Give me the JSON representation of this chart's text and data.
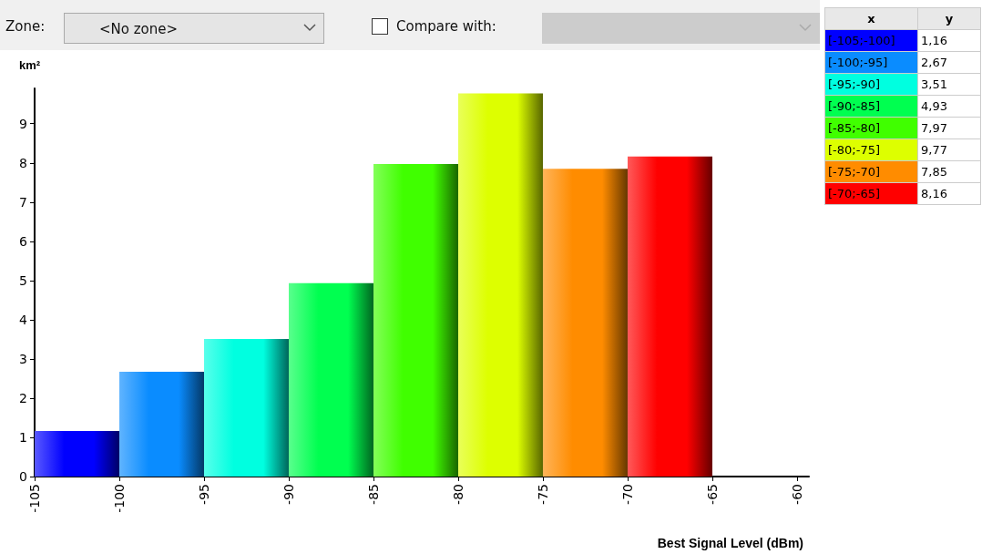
{
  "chart_data": {
    "type": "histogram",
    "xlabel": "Best Signal Level (dBm)",
    "ylabel": "km²",
    "bins": [
      -105,
      -100,
      -95,
      -90,
      -85,
      -80,
      -75,
      -70,
      -65
    ],
    "values": [
      1.16,
      2.67,
      3.51,
      4.93,
      7.97,
      9.77,
      7.85,
      8.16
    ],
    "colors": [
      "#0000ff",
      "#0a8cff",
      "#00ffe0",
      "#00ff50",
      "#40ff00",
      "#ddff00",
      "#ff8c00",
      "#ff0000"
    ],
    "xlim": [
      -105,
      -59.3
    ],
    "xticks": [
      -105,
      -100,
      -95,
      -90,
      -85,
      -80,
      -75,
      -70,
      -65,
      -60
    ],
    "ylim": [
      0,
      9.9
    ],
    "yticks": [
      0,
      1,
      2,
      3,
      4,
      5,
      6,
      7,
      8,
      9
    ],
    "grid": false,
    "annotations": [
      "Zone:",
      "<No zone>",
      "Compare with:",
      "x",
      "y",
      "[-105;-100]",
      "[-100;-95]",
      "[-95;-90]",
      "[-90;-85]",
      "[-85;-80]",
      "[-80;-75]",
      "[-75;-70]",
      "[-70;-65]",
      "1,16",
      "2,67",
      "3,51",
      "4,93",
      "7,97",
      "9,77",
      "7,85",
      "8,16"
    ]
  }
}
